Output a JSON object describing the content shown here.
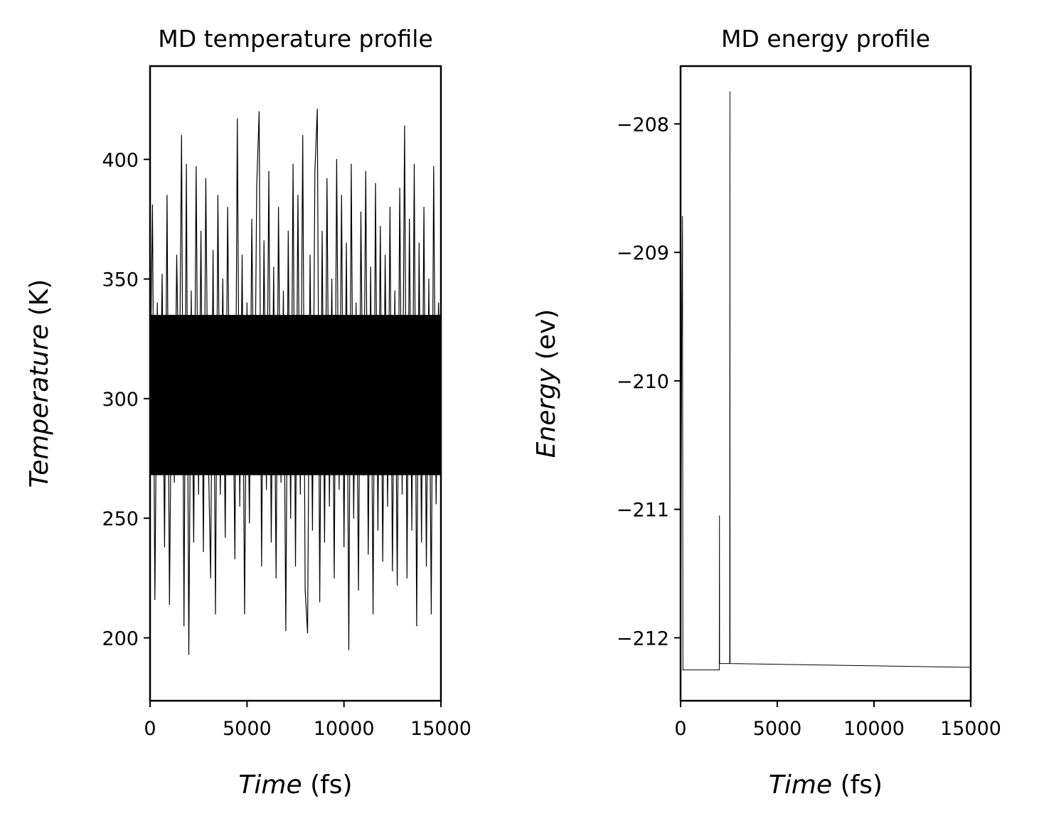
{
  "chart_data": [
    {
      "type": "line",
      "title": "MD temperature profile",
      "xlabel_italic": "Time",
      "xlabel_unit": " (fs)",
      "ylabel_italic": "Temperature",
      "ylabel_unit": " (K)",
      "xlim": [
        0,
        15000
      ],
      "ylim": [
        173.7,
        439
      ],
      "xticks": [
        0,
        5000,
        10000,
        15000
      ],
      "xtick_labels": [
        "0",
        "5000",
        "10000",
        "15000"
      ],
      "yticks": [
        200,
        250,
        300,
        350,
        400
      ],
      "ytick_labels": [
        "200",
        "250",
        "300",
        "350",
        "400"
      ],
      "grid": false,
      "color": "#000000",
      "x_start": 0,
      "x_step": 125,
      "dense_range": [
        268,
        335
      ],
      "values": [
        300,
        381,
        216,
        340,
        270,
        352,
        238,
        385,
        214,
        330,
        265,
        360,
        290,
        410,
        205,
        398,
        193,
        345,
        240,
        397,
        260,
        370,
        236,
        392,
        280,
        225,
        362,
        210,
        385,
        260,
        350,
        242,
        380,
        270,
        330,
        233,
        417,
        255,
        360,
        210,
        340,
        248,
        375,
        270,
        389,
        420,
        230,
        366,
        262,
        395,
        240,
        355,
        225,
        380,
        265,
        345,
        203,
        370,
        250,
        398,
        230,
        385,
        260,
        410,
        220,
        202,
        360,
        245,
        395,
        421,
        215,
        370,
        240,
        392,
        255,
        350,
        225,
        400,
        262,
        385,
        238,
        365,
        195,
        398,
        250,
        340,
        220,
        378,
        268,
        395,
        235,
        355,
        210,
        390,
        245,
        372,
        232,
        360,
        255,
        380,
        228,
        345,
        222,
        388,
        260,
        414,
        225,
        375,
        245,
        398,
        205,
        365,
        240,
        380,
        230,
        350,
        210,
        397,
        256,
        340,
        300
      ]
    },
    {
      "type": "line",
      "title": "MD energy profile",
      "xlabel_italic": "Time",
      "xlabel_unit": " (fs)",
      "ylabel_italic": "Energy",
      "ylabel_unit": " (ev)",
      "xlim": [
        0,
        15000
      ],
      "ylim": [
        -212.49,
        -207.55
      ],
      "xticks": [
        0,
        5000,
        10000,
        15000
      ],
      "xtick_labels": [
        "0",
        "5000",
        "10000",
        "15000"
      ],
      "yticks": [
        -212,
        -211,
        -210,
        -209,
        -208
      ],
      "ytick_labels": [
        "−212",
        "−211",
        "−210",
        "−209",
        "−208"
      ],
      "grid": false,
      "color": "#000000",
      "x": [
        0,
        60,
        100,
        120,
        2000,
        2010,
        2020,
        2540,
        2550,
        2560,
        15000
      ],
      "y": [
        -212.3,
        -209.7,
        -208.72,
        -212.25,
        -212.25,
        -211.05,
        -212.2,
        -212.2,
        -207.75,
        -212.2,
        -212.23
      ]
    }
  ]
}
